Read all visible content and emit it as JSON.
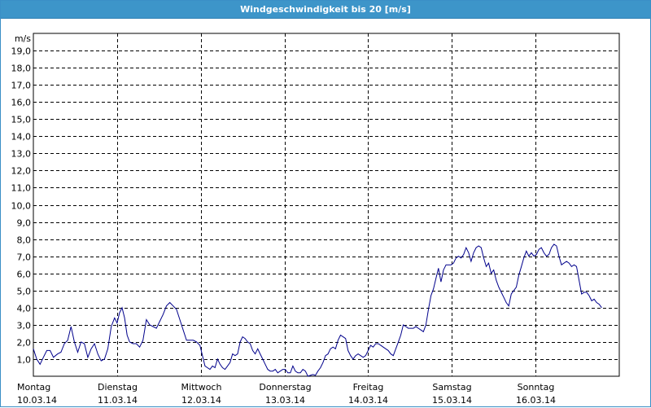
{
  "window": {
    "title": "Windgeschwindigkeit bis 20 [m/s]"
  },
  "chart_data": {
    "type": "line",
    "title": "Windgeschwindigkeit bis 20 [m/s]",
    "ylabel": "m/s",
    "ylim": [
      0,
      20
    ],
    "yticks": [
      "1,0",
      "2,0",
      "3,0",
      "4,0",
      "5,0",
      "6,0",
      "7,0",
      "8,0",
      "9,0",
      "10,0",
      "11,0",
      "12,0",
      "13,0",
      "14,0",
      "15,0",
      "16,0",
      "17,0",
      "18,0",
      "19,0"
    ],
    "xlim": [
      0,
      7
    ],
    "x_tick_labels": [
      {
        "day": "Montag",
        "date": "10.03.14"
      },
      {
        "day": "Dienstag",
        "date": "11.03.14"
      },
      {
        "day": "Mittwoch",
        "date": "12.03.14"
      },
      {
        "day": "Donnerstag",
        "date": "13.03.14"
      },
      {
        "day": "Freitag",
        "date": "14.03.14"
      },
      {
        "day": "Samstag",
        "date": "15.03.14"
      },
      {
        "day": "Sonntag",
        "date": "16.03.14"
      }
    ],
    "grid": true,
    "line_color": "#00008b",
    "series": [
      {
        "values": [
          [
            0.0,
            1.6
          ],
          [
            0.04,
            1.0
          ],
          [
            0.08,
            0.7
          ],
          [
            0.12,
            1.1
          ],
          [
            0.16,
            1.5
          ],
          [
            0.2,
            1.5
          ],
          [
            0.24,
            1.1
          ],
          [
            0.29,
            1.3
          ],
          [
            0.33,
            1.4
          ],
          [
            0.37,
            1.9
          ],
          [
            0.41,
            2.1
          ],
          [
            0.45,
            2.9
          ],
          [
            0.49,
            2.0
          ],
          [
            0.53,
            1.4
          ],
          [
            0.57,
            2.0
          ],
          [
            0.61,
            1.9
          ],
          [
            0.65,
            1.1
          ],
          [
            0.69,
            1.6
          ],
          [
            0.73,
            1.9
          ],
          [
            0.77,
            1.3
          ],
          [
            0.81,
            0.9
          ],
          [
            0.85,
            1.0
          ],
          [
            0.89,
            1.6
          ],
          [
            0.93,
            2.9
          ],
          [
            0.97,
            3.4
          ],
          [
            1.0,
            3.1
          ],
          [
            1.03,
            3.7
          ],
          [
            1.06,
            4.0
          ],
          [
            1.09,
            3.4
          ],
          [
            1.12,
            2.4
          ],
          [
            1.15,
            2.0
          ],
          [
            1.19,
            1.9
          ],
          [
            1.23,
            1.9
          ],
          [
            1.27,
            1.7
          ],
          [
            1.31,
            2.1
          ],
          [
            1.35,
            3.3
          ],
          [
            1.39,
            3.0
          ],
          [
            1.43,
            2.9
          ],
          [
            1.47,
            2.8
          ],
          [
            1.51,
            3.2
          ],
          [
            1.55,
            3.6
          ],
          [
            1.59,
            4.1
          ],
          [
            1.63,
            4.3
          ],
          [
            1.67,
            4.1
          ],
          [
            1.71,
            3.9
          ],
          [
            1.75,
            3.3
          ],
          [
            1.79,
            2.7
          ],
          [
            1.83,
            2.1
          ],
          [
            1.87,
            2.1
          ],
          [
            1.91,
            2.1
          ],
          [
            1.95,
            2.0
          ],
          [
            1.99,
            1.8
          ],
          [
            2.02,
            1.2
          ],
          [
            2.05,
            0.6
          ],
          [
            2.08,
            0.5
          ],
          [
            2.11,
            0.4
          ],
          [
            2.14,
            0.6
          ],
          [
            2.17,
            0.5
          ],
          [
            2.2,
            1.0
          ],
          [
            2.23,
            0.7
          ],
          [
            2.26,
            0.5
          ],
          [
            2.29,
            0.4
          ],
          [
            2.32,
            0.6
          ],
          [
            2.35,
            0.8
          ],
          [
            2.38,
            1.3
          ],
          [
            2.41,
            1.2
          ],
          [
            2.44,
            1.3
          ],
          [
            2.47,
            2.0
          ],
          [
            2.5,
            2.3
          ],
          [
            2.53,
            2.2
          ],
          [
            2.56,
            2.0
          ],
          [
            2.59,
            1.9
          ],
          [
            2.62,
            1.5
          ],
          [
            2.65,
            1.3
          ],
          [
            2.68,
            1.6
          ],
          [
            2.71,
            1.3
          ],
          [
            2.74,
            1.0
          ],
          [
            2.77,
            0.7
          ],
          [
            2.8,
            0.4
          ],
          [
            2.83,
            0.3
          ],
          [
            2.86,
            0.3
          ],
          [
            2.89,
            0.4
          ],
          [
            2.92,
            0.2
          ],
          [
            2.95,
            0.3
          ],
          [
            2.98,
            0.4
          ],
          [
            3.01,
            0.4
          ],
          [
            3.04,
            0.2
          ],
          [
            3.07,
            0.2
          ],
          [
            3.1,
            0.6
          ],
          [
            3.13,
            0.3
          ],
          [
            3.16,
            0.2
          ],
          [
            3.19,
            0.2
          ],
          [
            3.22,
            0.4
          ],
          [
            3.25,
            0.3
          ],
          [
            3.28,
            0.0
          ],
          [
            3.31,
            0.05
          ],
          [
            3.34,
            0.1
          ],
          [
            3.37,
            0.05
          ],
          [
            3.4,
            0.3
          ],
          [
            3.43,
            0.5
          ],
          [
            3.46,
            0.8
          ],
          [
            3.49,
            1.2
          ],
          [
            3.52,
            1.3
          ],
          [
            3.55,
            1.6
          ],
          [
            3.58,
            1.7
          ],
          [
            3.61,
            1.6
          ],
          [
            3.64,
            2.1
          ],
          [
            3.67,
            2.4
          ],
          [
            3.7,
            2.3
          ],
          [
            3.73,
            2.2
          ],
          [
            3.76,
            1.5
          ],
          [
            3.79,
            1.2
          ],
          [
            3.82,
            1.0
          ],
          [
            3.85,
            1.2
          ],
          [
            3.88,
            1.3
          ],
          [
            3.91,
            1.2
          ],
          [
            3.94,
            1.1
          ],
          [
            3.97,
            1.2
          ],
          [
            4.0,
            1.5
          ],
          [
            4.03,
            1.8
          ],
          [
            4.06,
            1.7
          ],
          [
            4.09,
            1.9
          ],
          [
            4.12,
            1.9
          ],
          [
            4.15,
            1.8
          ],
          [
            4.18,
            1.7
          ],
          [
            4.21,
            1.6
          ],
          [
            4.24,
            1.5
          ],
          [
            4.27,
            1.3
          ],
          [
            4.3,
            1.2
          ],
          [
            4.33,
            1.6
          ],
          [
            4.36,
            2.0
          ],
          [
            4.39,
            2.4
          ],
          [
            4.42,
            3.0
          ],
          [
            4.45,
            2.9
          ],
          [
            4.48,
            2.8
          ],
          [
            4.51,
            2.8
          ],
          [
            4.54,
            2.8
          ],
          [
            4.57,
            2.9
          ],
          [
            4.6,
            2.8
          ],
          [
            4.63,
            2.7
          ],
          [
            4.66,
            2.6
          ],
          [
            4.69,
            3.0
          ],
          [
            4.72,
            3.9
          ],
          [
            4.75,
            4.7
          ],
          [
            4.78,
            5.1
          ],
          [
            4.81,
            5.7
          ],
          [
            4.84,
            6.3
          ],
          [
            4.87,
            5.5
          ],
          [
            4.9,
            6.2
          ],
          [
            4.93,
            6.5
          ],
          [
            4.96,
            6.5
          ],
          [
            4.99,
            6.5
          ],
          [
            5.02,
            6.6
          ],
          [
            5.05,
            6.9
          ],
          [
            5.08,
            7.0
          ],
          [
            5.11,
            6.9
          ],
          [
            5.14,
            7.1
          ],
          [
            5.17,
            7.5
          ],
          [
            5.2,
            7.2
          ],
          [
            5.23,
            6.7
          ],
          [
            5.26,
            7.2
          ],
          [
            5.29,
            7.5
          ],
          [
            5.32,
            7.6
          ],
          [
            5.35,
            7.5
          ],
          [
            5.38,
            6.9
          ],
          [
            5.41,
            6.4
          ],
          [
            5.44,
            6.6
          ],
          [
            5.47,
            6.0
          ],
          [
            5.5,
            6.2
          ],
          [
            5.53,
            5.6
          ],
          [
            5.56,
            5.2
          ],
          [
            5.59,
            4.9
          ],
          [
            5.62,
            4.6
          ],
          [
            5.65,
            4.3
          ],
          [
            5.68,
            4.1
          ],
          [
            5.71,
            4.8
          ],
          [
            5.74,
            5.0
          ],
          [
            5.77,
            5.2
          ],
          [
            5.8,
            5.9
          ],
          [
            5.83,
            6.4
          ],
          [
            5.86,
            6.9
          ],
          [
            5.89,
            7.3
          ],
          [
            5.92,
            7.0
          ],
          [
            5.95,
            7.2
          ],
          [
            5.98,
            7.0
          ],
          [
            6.01,
            7.1
          ],
          [
            6.04,
            7.4
          ],
          [
            6.07,
            7.5
          ],
          [
            6.1,
            7.2
          ],
          [
            6.13,
            7.0
          ],
          [
            6.16,
            7.1
          ],
          [
            6.19,
            7.5
          ],
          [
            6.22,
            7.7
          ],
          [
            6.25,
            7.6
          ],
          [
            6.28,
            7.0
          ],
          [
            6.31,
            6.5
          ],
          [
            6.34,
            6.6
          ],
          [
            6.37,
            6.7
          ],
          [
            6.4,
            6.6
          ],
          [
            6.43,
            6.4
          ],
          [
            6.46,
            6.5
          ],
          [
            6.49,
            6.4
          ],
          [
            6.52,
            5.6
          ],
          [
            6.55,
            4.8
          ],
          [
            6.58,
            4.9
          ],
          [
            6.61,
            4.9
          ],
          [
            6.64,
            4.7
          ],
          [
            6.67,
            4.4
          ],
          [
            6.7,
            4.5
          ],
          [
            6.73,
            4.3
          ],
          [
            6.76,
            4.2
          ],
          [
            6.79,
            4.0
          ]
        ]
      }
    ]
  }
}
